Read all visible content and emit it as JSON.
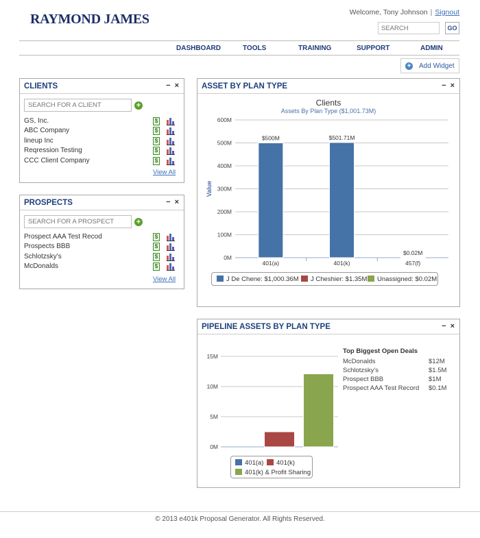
{
  "header": {
    "logo": "RAYMOND JAMES",
    "welcome": "Welcome, Tony Johnson",
    "separator": "|",
    "signout": "Signout",
    "search_placeholder": "SEARCH",
    "go_label": "GO"
  },
  "nav": [
    "DASHBOARD",
    "TOOLS",
    "TRAINING",
    "SUPPORT",
    "ADMIN"
  ],
  "add_widget": "Add Widget",
  "clients": {
    "title": "CLIENTS",
    "minimize": "−",
    "close": "×",
    "search_placeholder": "SEARCH FOR A CLIENT",
    "items": [
      "GS, Inc.",
      "ABC Company",
      "lineup Inc",
      "Reqression Testing",
      "CCC Client Company"
    ],
    "view_all": "View All"
  },
  "prospects": {
    "title": "PROSPECTS",
    "minimize": "−",
    "close": "×",
    "search_placeholder": "SEARCH FOR A PROSPECT",
    "items": [
      "Prospect AAA Test Recod",
      "Prospects BBB",
      "Schlotzsky's",
      "McDonalds"
    ],
    "view_all": "View All"
  },
  "asset_panel": {
    "title": "ASSET BY PLAN TYPE",
    "minimize": "−",
    "close": "×",
    "legend": [
      {
        "label": "J De Chene: $1,000.36M",
        "color": "#4572a7"
      },
      {
        "label": "J Cheshier: $1.35M",
        "color": "#aa4643"
      },
      {
        "label": "Unassigned: $0.02M",
        "color": "#89a54e"
      }
    ]
  },
  "pipeline_panel": {
    "title": "PIPELINE ASSETS BY PLAN TYPE",
    "minimize": "−",
    "close": "×",
    "legend": [
      {
        "label": "401(a)",
        "color": "#4572a7"
      },
      {
        "label": "401(k)",
        "color": "#aa4643"
      },
      {
        "label": "401(k) & Profit Sharing",
        "color": "#89a54e"
      }
    ],
    "deals_title": "Top Biggest Open Deals",
    "deals": [
      {
        "name": "McDonalds",
        "value": "$12M"
      },
      {
        "name": "Schlotzsky's",
        "value": "$1.5M"
      },
      {
        "name": "Prospect BBB",
        "value": "$1M"
      },
      {
        "name": "Prospect AAA Test Record",
        "value": "$0.1M"
      }
    ]
  },
  "chart_data": [
    {
      "type": "bar",
      "title": "Clients",
      "subtitle": "Assets By Plan Type ($1,001.73M)",
      "xlabel": "",
      "ylabel": "Value",
      "categories": [
        "401(a)",
        "401(k)",
        "457(f)"
      ],
      "values": [
        500,
        501.71,
        0.02
      ],
      "data_labels": [
        "$500M",
        "$501.71M",
        "$0.02M"
      ],
      "ylim": [
        0,
        600
      ],
      "yticks": [
        0,
        100,
        200,
        300,
        400,
        500,
        600
      ],
      "ytick_labels": [
        "0M",
        "100M",
        "200M",
        "300M",
        "400M",
        "500M",
        "600M"
      ],
      "colors": [
        "#4572a7"
      ],
      "grid": true,
      "legend": "bottom"
    },
    {
      "type": "bar",
      "title": "",
      "xlabel": "",
      "ylabel": "",
      "series": [
        {
          "name": "401(a)",
          "values": [
            0
          ],
          "color": "#4572a7"
        },
        {
          "name": "401(k)",
          "values": [
            2.5
          ],
          "color": "#aa4643"
        },
        {
          "name": "401(k) & Profit Sharing",
          "values": [
            12.1
          ],
          "color": "#89a54e"
        }
      ],
      "ylim": [
        0,
        15
      ],
      "yticks": [
        0,
        5,
        10,
        15
      ],
      "ytick_labels": [
        "0M",
        "5M",
        "10M",
        "15M"
      ],
      "grid": true,
      "legend": "bottom"
    }
  ],
  "footer": "© 2013 e401k Proposal Generator. All Rights Reserved."
}
